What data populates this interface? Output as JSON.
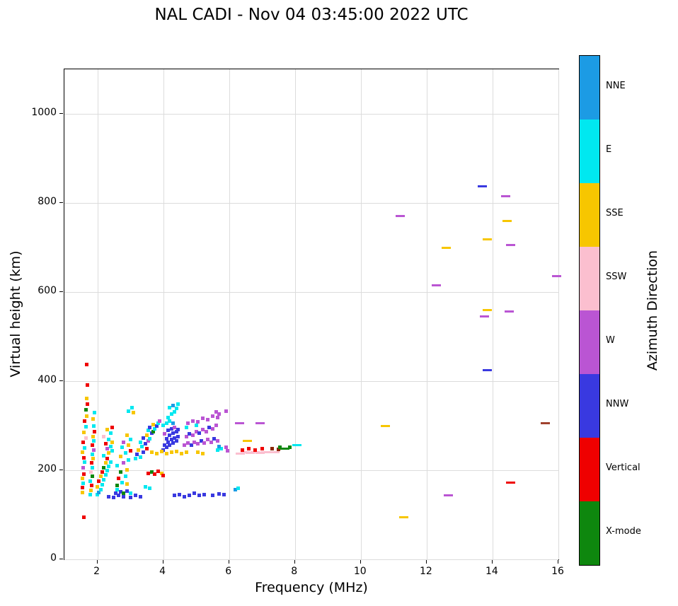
{
  "title": "NAL CADI - Nov 04 03:45:00 2022 UTC",
  "colorbar": {
    "label": "Azimuth Direction",
    "entries": [
      {
        "label": "NNE",
        "color": "#1C9BE4"
      },
      {
        "label": "E",
        "color": "#00E8F0"
      },
      {
        "label": "SSE",
        "color": "#F7C600"
      },
      {
        "label": "SSW",
        "color": "#FBBFCF"
      },
      {
        "label": "W",
        "color": "#BA55D3"
      },
      {
        "label": "NNW",
        "color": "#3939E0"
      },
      {
        "label": "Vertical",
        "color": "#EF0000"
      },
      {
        "label": "X-mode",
        "color": "#0E870E"
      }
    ]
  },
  "chart_data": {
    "type": "scatter",
    "title": "NAL CADI - Nov 04 03:45:00 2022 UTC",
    "xlabel": "Frequency (MHz)",
    "ylabel": "Virtual height (km)",
    "xlim": [
      1,
      16
    ],
    "ylim": [
      0,
      1100
    ],
    "xticks": [
      2,
      4,
      6,
      8,
      10,
      12,
      14,
      16
    ],
    "yticks": [
      0,
      200,
      400,
      600,
      800,
      1000
    ],
    "grid": true,
    "legend_position": "right-colorbar",
    "point_format": [
      "frequency_mhz",
      "virtual_height_km",
      "azimuth_direction",
      "dash_style",
      "color_override"
    ],
    "points": [
      [
        1.6,
        95,
        "Vertical"
      ],
      [
        1.68,
        438,
        "Vertical"
      ],
      [
        1.7,
        392,
        "Vertical"
      ],
      [
        1.55,
        150,
        "SSE"
      ],
      [
        1.55,
        161,
        "Vertical"
      ],
      [
        1.58,
        171,
        "E"
      ],
      [
        1.55,
        182,
        "SSE"
      ],
      [
        1.6,
        192,
        "Vertical"
      ],
      [
        1.58,
        205,
        "W"
      ],
      [
        1.62,
        218,
        "E"
      ],
      [
        1.6,
        228,
        "Vertical"
      ],
      [
        1.55,
        240,
        "SSE"
      ],
      [
        1.62,
        250,
        "E"
      ],
      [
        1.58,
        262,
        "Vertical"
      ],
      [
        1.65,
        272,
        "SSW"
      ],
      [
        1.6,
        285,
        "SSE"
      ],
      [
        1.65,
        298,
        "E"
      ],
      [
        1.62,
        310,
        "Vertical"
      ],
      [
        1.68,
        322,
        "SSE"
      ],
      [
        1.65,
        335,
        "X-mode"
      ],
      [
        1.7,
        348,
        "Vertical"
      ],
      [
        1.68,
        361,
        "SSE"
      ],
      [
        1.78,
        145,
        "E"
      ],
      [
        1.8,
        155,
        "SSE"
      ],
      [
        1.82,
        166,
        "Vertical"
      ],
      [
        1.78,
        176,
        "E"
      ],
      [
        1.85,
        186,
        "X-mode"
      ],
      [
        1.8,
        196,
        "SSW"
      ],
      [
        1.85,
        206,
        "E"
      ],
      [
        1.82,
        216,
        "Vertical"
      ],
      [
        1.88,
        226,
        "SSE"
      ],
      [
        1.85,
        236,
        "E"
      ],
      [
        1.9,
        246,
        "W"
      ],
      [
        1.85,
        256,
        "Vertical"
      ],
      [
        1.9,
        266,
        "E"
      ],
      [
        1.88,
        276,
        "SSE"
      ],
      [
        1.92,
        286,
        "Vertical"
      ],
      [
        1.9,
        300,
        "E"
      ],
      [
        1.88,
        315,
        "SSE"
      ],
      [
        1.92,
        330,
        "E"
      ],
      [
        2.0,
        145,
        "E"
      ],
      [
        2.05,
        150,
        "NNE"
      ],
      [
        2.1,
        156,
        "E"
      ],
      [
        2.0,
        163,
        "SSE"
      ],
      [
        2.15,
        168,
        "E"
      ],
      [
        2.05,
        175,
        "Vertical"
      ],
      [
        2.2,
        179,
        "E"
      ],
      [
        2.1,
        186,
        "SSE"
      ],
      [
        2.25,
        189,
        "E"
      ],
      [
        2.15,
        196,
        "Vertical"
      ],
      [
        2.3,
        199,
        "E"
      ],
      [
        2.2,
        206,
        "X-mode"
      ],
      [
        2.35,
        209,
        "E"
      ],
      [
        2.25,
        216,
        "SSE"
      ],
      [
        2.4,
        219,
        "E"
      ],
      [
        2.3,
        226,
        "Vertical"
      ],
      [
        2.2,
        233,
        "E"
      ],
      [
        2.35,
        239,
        "SSE"
      ],
      [
        2.45,
        243,
        "E"
      ],
      [
        2.3,
        249,
        "W"
      ],
      [
        2.4,
        253,
        "E"
      ],
      [
        2.25,
        259,
        "Vertical"
      ],
      [
        2.45,
        263,
        "SSE"
      ],
      [
        2.35,
        269,
        "E"
      ],
      [
        2.2,
        276,
        "SSW"
      ],
      [
        2.4,
        283,
        "E"
      ],
      [
        2.3,
        291,
        "SSE"
      ],
      [
        2.45,
        296,
        "Vertical"
      ],
      [
        2.55,
        149,
        "NNW"
      ],
      [
        2.6,
        156,
        "E"
      ],
      [
        2.7,
        151,
        "NNW"
      ],
      [
        2.8,
        149,
        "X-mode"
      ],
      [
        2.9,
        153,
        "NNW"
      ],
      [
        3.0,
        149,
        "E"
      ],
      [
        2.6,
        166,
        "X-mode"
      ],
      [
        2.75,
        173,
        "E"
      ],
      [
        2.9,
        169,
        "SSE"
      ],
      [
        2.65,
        181,
        "Vertical"
      ],
      [
        2.85,
        186,
        "E"
      ],
      [
        2.7,
        196,
        "X-mode"
      ],
      [
        2.9,
        201,
        "SSE"
      ],
      [
        2.6,
        211,
        "E"
      ],
      [
        2.8,
        216,
        "W"
      ],
      [
        2.95,
        223,
        "E"
      ],
      [
        2.7,
        231,
        "SSE"
      ],
      [
        2.85,
        239,
        "E"
      ],
      [
        3.0,
        243,
        "Vertical"
      ],
      [
        2.75,
        251,
        "E"
      ],
      [
        2.95,
        256,
        "SSE"
      ],
      [
        2.8,
        263,
        "W"
      ],
      [
        3.0,
        269,
        "E"
      ],
      [
        2.9,
        279,
        "SSE"
      ],
      [
        2.95,
        333,
        "E"
      ],
      [
        3.05,
        341,
        "E"
      ],
      [
        3.1,
        329,
        "SSE"
      ],
      [
        3.45,
        163,
        "E"
      ],
      [
        3.6,
        159,
        "E"
      ],
      [
        3.15,
        226,
        "E"
      ],
      [
        3.2,
        236,
        "NNW"
      ],
      [
        3.3,
        229,
        "E"
      ],
      [
        3.25,
        246,
        "SSE"
      ],
      [
        3.4,
        241,
        "NNW"
      ],
      [
        3.35,
        253,
        "E"
      ],
      [
        3.5,
        249,
        "Vertical"
      ],
      [
        3.45,
        259,
        "NNW"
      ],
      [
        3.3,
        263,
        "E"
      ],
      [
        3.55,
        266,
        "W"
      ],
      [
        3.4,
        273,
        "NNW"
      ],
      [
        3.6,
        271,
        "E"
      ],
      [
        3.5,
        279,
        "SSE"
      ],
      [
        3.65,
        283,
        "NNW"
      ],
      [
        3.55,
        289,
        "E"
      ],
      [
        3.7,
        286,
        "X-mode"
      ],
      [
        3.6,
        296,
        "NNW"
      ],
      [
        3.75,
        293,
        "E"
      ],
      [
        3.7,
        303,
        "SSE"
      ],
      [
        3.8,
        299,
        "NNW"
      ],
      [
        3.85,
        306,
        "E"
      ],
      [
        3.9,
        311,
        "W"
      ],
      [
        3.55,
        193,
        "Vertical"
      ],
      [
        3.65,
        196,
        "X-mode"
      ],
      [
        3.75,
        191,
        "Vertical"
      ],
      [
        3.85,
        197,
        "Vertical"
      ],
      [
        3.95,
        193,
        "SSE"
      ],
      [
        4.0,
        188,
        "Vertical"
      ],
      [
        2.35,
        141,
        "NNW"
      ],
      [
        2.5,
        139,
        "NNW"
      ],
      [
        2.65,
        143,
        "NNW"
      ],
      [
        2.8,
        141,
        "NNW"
      ],
      [
        3.0,
        139,
        "NNW"
      ],
      [
        3.15,
        143,
        "NNW"
      ],
      [
        3.3,
        141,
        "NNW"
      ],
      [
        4.0,
        246,
        "NNW"
      ],
      [
        4.05,
        256,
        "NNW"
      ],
      [
        4.1,
        251,
        "NNW"
      ],
      [
        4.15,
        263,
        "NNW"
      ],
      [
        4.2,
        256,
        "NNW"
      ],
      [
        4.25,
        269,
        "NNW"
      ],
      [
        4.3,
        261,
        "NNW"
      ],
      [
        4.35,
        273,
        "NNW"
      ],
      [
        4.4,
        266,
        "NNW"
      ],
      [
        4.45,
        276,
        "NNW"
      ],
      [
        4.1,
        271,
        "NNW"
      ],
      [
        4.2,
        279,
        "NNW"
      ],
      [
        4.3,
        283,
        "NNW"
      ],
      [
        4.4,
        286,
        "NNW"
      ],
      [
        4.05,
        281,
        "W"
      ],
      [
        4.15,
        289,
        "NNW"
      ],
      [
        4.25,
        293,
        "NNW"
      ],
      [
        4.35,
        296,
        "W"
      ],
      [
        4.45,
        291,
        "NNW"
      ],
      [
        4.0,
        301,
        "E"
      ],
      [
        4.1,
        306,
        "E"
      ],
      [
        4.2,
        311,
        "E"
      ],
      [
        4.3,
        306,
        "NNE"
      ],
      [
        4.15,
        319,
        "E"
      ],
      [
        4.25,
        326,
        "E"
      ],
      [
        4.35,
        331,
        "E"
      ],
      [
        4.2,
        341,
        "E"
      ],
      [
        4.3,
        346,
        "NNE"
      ],
      [
        4.4,
        339,
        "E"
      ],
      [
        4.45,
        349,
        "E"
      ],
      [
        3.65,
        240,
        "SSE"
      ],
      [
        3.8,
        238,
        "SSE"
      ],
      [
        3.95,
        242,
        "SSE"
      ],
      [
        4.1,
        238,
        "SSE"
      ],
      [
        4.25,
        240,
        "SSE"
      ],
      [
        4.4,
        242,
        "SSE"
      ],
      [
        4.55,
        238,
        "SSE"
      ],
      [
        4.7,
        240,
        "SSE"
      ],
      [
        4.65,
        256,
        "W"
      ],
      [
        4.75,
        261,
        "W"
      ],
      [
        4.85,
        256,
        "NNW"
      ],
      [
        4.95,
        263,
        "W"
      ],
      [
        5.05,
        259,
        "W"
      ],
      [
        5.15,
        266,
        "NNW"
      ],
      [
        5.25,
        261,
        "W"
      ],
      [
        5.35,
        269,
        "W"
      ],
      [
        5.45,
        263,
        "W"
      ],
      [
        5.55,
        271,
        "NNW"
      ],
      [
        5.65,
        266,
        "W"
      ],
      [
        4.7,
        276,
        "W"
      ],
      [
        4.8,
        281,
        "NNW"
      ],
      [
        4.9,
        279,
        "W"
      ],
      [
        5.0,
        286,
        "W"
      ],
      [
        5.1,
        283,
        "NNW"
      ],
      [
        5.2,
        291,
        "W"
      ],
      [
        5.3,
        287,
        "W"
      ],
      [
        5.4,
        296,
        "NNW"
      ],
      [
        5.5,
        293,
        "W"
      ],
      [
        5.6,
        301,
        "W"
      ],
      [
        4.75,
        306,
        "W"
      ],
      [
        4.9,
        311,
        "W"
      ],
      [
        5.05,
        309,
        "W"
      ],
      [
        5.2,
        316,
        "W"
      ],
      [
        5.35,
        313,
        "W"
      ],
      [
        5.5,
        321,
        "W"
      ],
      [
        5.65,
        319,
        "W"
      ],
      [
        5.6,
        331,
        "W"
      ],
      [
        5.7,
        326,
        "W"
      ],
      [
        4.7,
        296,
        "E"
      ],
      [
        5.0,
        301,
        "E"
      ],
      [
        5.65,
        246,
        "E"
      ],
      [
        5.75,
        249,
        "E"
      ],
      [
        5.7,
        253,
        "NNE"
      ],
      [
        5.05,
        240,
        "SSE"
      ],
      [
        5.2,
        238,
        "SSE"
      ],
      [
        4.35,
        143,
        "NNW"
      ],
      [
        4.5,
        146,
        "NNW"
      ],
      [
        4.65,
        141,
        "NNW"
      ],
      [
        4.8,
        144,
        "NNW"
      ],
      [
        4.95,
        148,
        "NNW"
      ],
      [
        5.1,
        143,
        "NNW"
      ],
      [
        5.25,
        146,
        "NNW"
      ],
      [
        5.5,
        144,
        "NNW"
      ],
      [
        5.7,
        147,
        "NNW"
      ],
      [
        5.85,
        145,
        "NNW"
      ],
      [
        5.9,
        251,
        "W"
      ],
      [
        5.95,
        243,
        "W"
      ],
      [
        5.9,
        333,
        "W"
      ],
      [
        6.2,
        156,
        "NNE"
      ],
      [
        6.27,
        159,
        "E"
      ],
      [
        6.35,
        238,
        "SSW",
        1
      ],
      [
        6.5,
        240,
        "SSW",
        1
      ],
      [
        6.65,
        239,
        "SSW",
        1
      ],
      [
        6.8,
        241,
        "SSW",
        1
      ],
      [
        6.95,
        239,
        "SSW",
        1
      ],
      [
        7.1,
        241,
        "SSW",
        1
      ],
      [
        7.25,
        240,
        "SSW",
        1
      ],
      [
        7.4,
        241,
        "SSW",
        1
      ],
      [
        6.4,
        246,
        "Vertical"
      ],
      [
        6.6,
        248,
        "Vertical"
      ],
      [
        6.8,
        246,
        "Vertical"
      ],
      [
        7.0,
        248,
        "Vertical"
      ],
      [
        7.3,
        249,
        "Vertical",
        0,
        "#8B2500"
      ],
      [
        7.5,
        247,
        "Vertical",
        0,
        "#8B2500"
      ],
      [
        7.55,
        251,
        "X-mode"
      ],
      [
        7.7,
        249,
        "X-mode",
        1
      ],
      [
        7.85,
        251,
        "X-mode"
      ],
      [
        8.05,
        256,
        "E",
        1
      ],
      [
        6.55,
        266,
        "SSE",
        1
      ],
      [
        6.32,
        306,
        "W",
        1
      ],
      [
        6.95,
        306,
        "W",
        1
      ],
      [
        10.75,
        300,
        "SSE",
        1
      ],
      [
        11.2,
        770,
        "W",
        1
      ],
      [
        11.3,
        95,
        "SSE",
        1
      ],
      [
        12.3,
        615,
        "W",
        1
      ],
      [
        12.6,
        700,
        "SSE",
        1
      ],
      [
        12.65,
        144,
        "W",
        1
      ],
      [
        13.7,
        838,
        "NNW",
        1
      ],
      [
        13.75,
        545,
        "W",
        1
      ],
      [
        13.85,
        560,
        "SSE",
        1
      ],
      [
        13.85,
        718,
        "SSE",
        1
      ],
      [
        13.85,
        425,
        "NNW",
        1
      ],
      [
        14.4,
        815,
        "W",
        1
      ],
      [
        14.45,
        760,
        "SSE",
        1
      ],
      [
        14.55,
        705,
        "W",
        1
      ],
      [
        14.5,
        556,
        "W",
        1
      ],
      [
        14.55,
        173,
        "Vertical",
        1
      ],
      [
        15.6,
        305,
        "Vertical",
        1,
        "#A0412D"
      ],
      [
        15.95,
        635,
        "W",
        1
      ]
    ]
  }
}
